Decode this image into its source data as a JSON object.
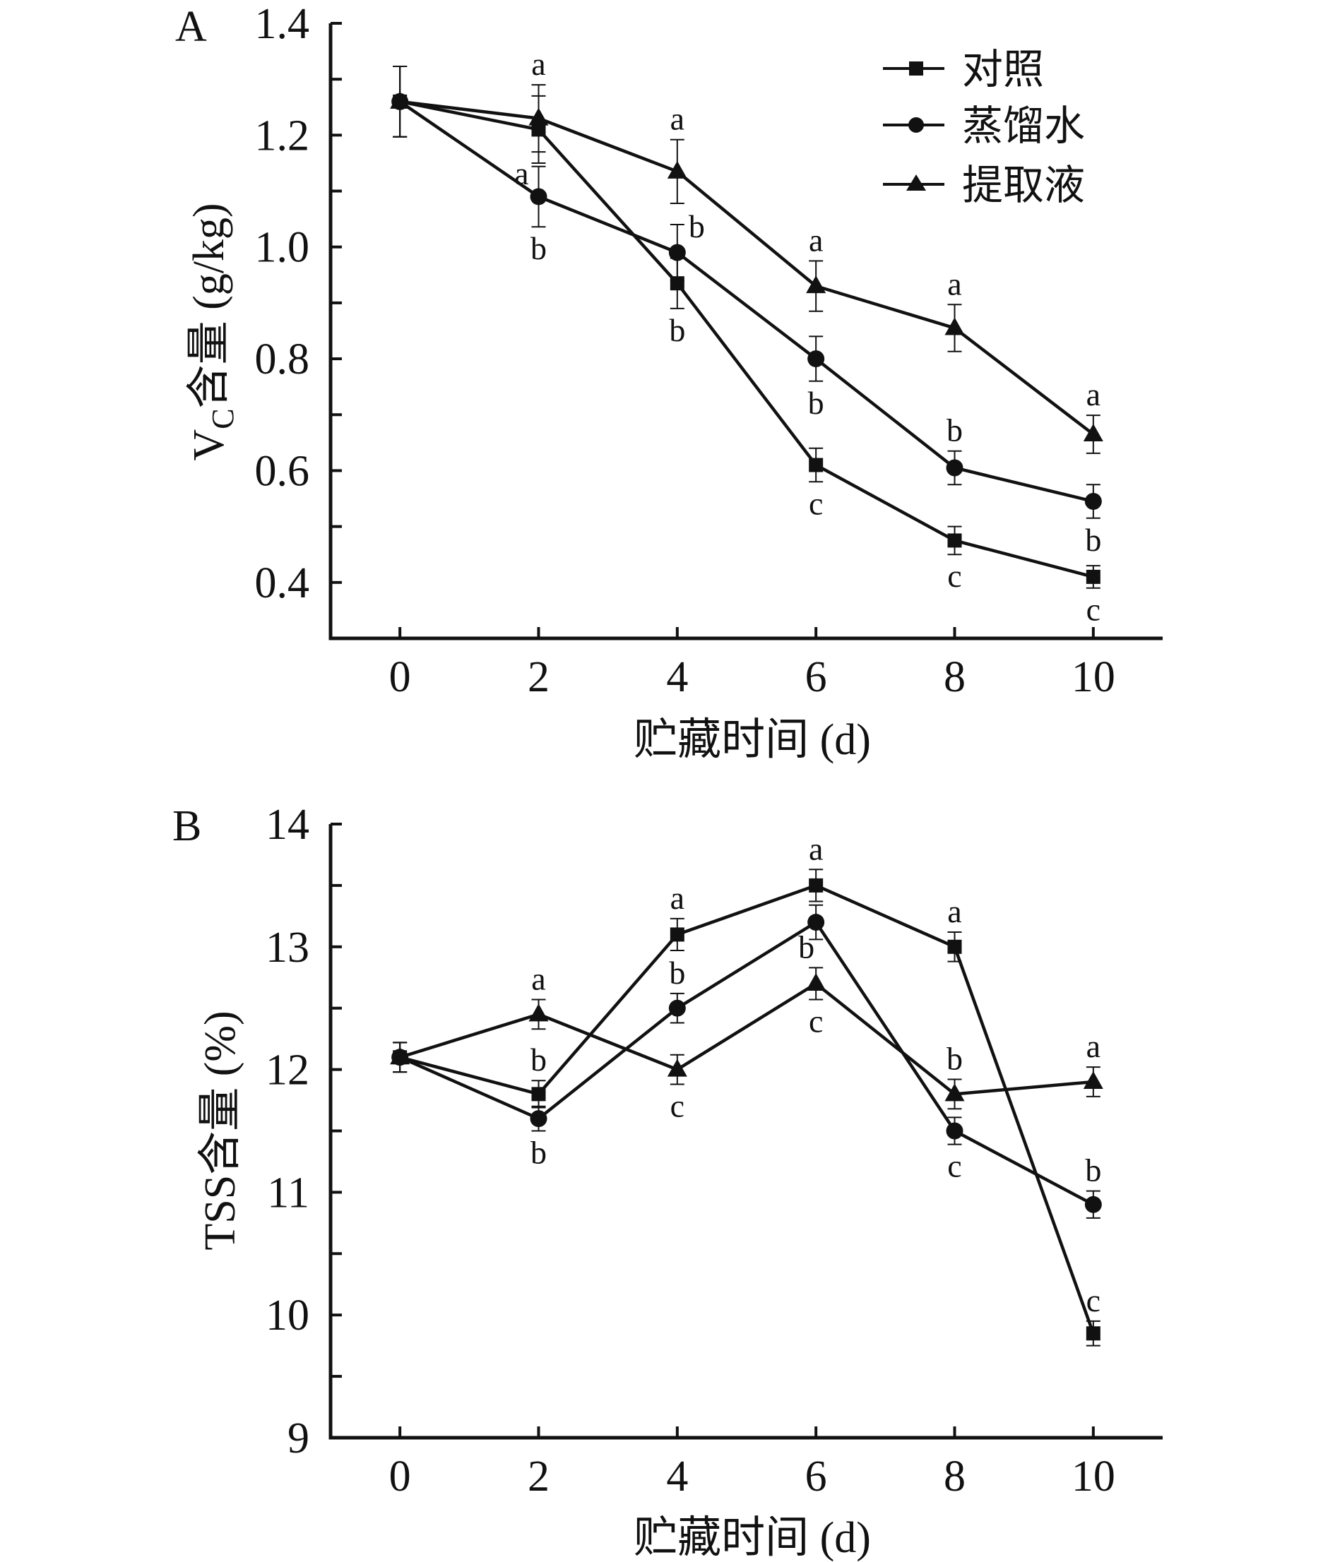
{
  "chart_data": [
    {
      "type": "line",
      "panel": "A",
      "title": "",
      "xlabel": "贮藏时间 (d)",
      "ylabel_main": "V",
      "ylabel_sub": "C",
      "ylabel_rest": "含量 (g/kg)",
      "x": [
        0,
        2,
        4,
        6,
        8,
        10
      ],
      "xticks": [
        "0",
        "2",
        "4",
        "6",
        "8",
        "10"
      ],
      "xlim": [
        -1,
        11
      ],
      "ylim": [
        0.3,
        1.4
      ],
      "yticks": [
        0.4,
        0.6,
        0.8,
        1.0,
        1.2,
        1.4
      ],
      "ytick_labels": [
        "0.4",
        "0.6",
        "0.8",
        "1.0",
        "1.2",
        "1.4"
      ],
      "yminor_step": 0.1,
      "grid": false,
      "legend_position": "top-right",
      "series": [
        {
          "name": "对照",
          "marker": "square",
          "values": [
            1.26,
            1.21,
            0.935,
            0.61,
            0.475,
            0.41
          ],
          "errors": [
            0.063,
            0.06,
            0.045,
            0.03,
            0.025,
            0.02
          ]
        },
        {
          "name": "蒸馏水",
          "marker": "circle",
          "values": [
            1.26,
            1.09,
            0.99,
            0.8,
            0.605,
            0.545
          ],
          "errors": [
            0.063,
            0.054,
            0.05,
            0.04,
            0.03,
            0.03
          ]
        },
        {
          "name": "提取液",
          "marker": "triangle",
          "values": [
            1.26,
            1.23,
            1.135,
            0.93,
            0.855,
            0.665
          ],
          "errors": [
            0.063,
            0.06,
            0.057,
            0.045,
            0.042,
            0.034
          ]
        }
      ],
      "annotations": [
        {
          "text": "a",
          "x": 2,
          "series": 2,
          "side": "above"
        },
        {
          "text": "a",
          "x": 2,
          "series": 0,
          "side": "left-below"
        },
        {
          "text": "b",
          "x": 2,
          "series": 1,
          "side": "below"
        },
        {
          "text": "a",
          "x": 4,
          "series": 2,
          "side": "above"
        },
        {
          "text": "b",
          "x": 4,
          "series": 1,
          "side": "right-above"
        },
        {
          "text": "b",
          "x": 4,
          "series": 0,
          "side": "below"
        },
        {
          "text": "a",
          "x": 6,
          "series": 2,
          "side": "above"
        },
        {
          "text": "b",
          "x": 6,
          "series": 1,
          "side": "below"
        },
        {
          "text": "c",
          "x": 6,
          "series": 0,
          "side": "below"
        },
        {
          "text": "a",
          "x": 8,
          "series": 2,
          "side": "above"
        },
        {
          "text": "b",
          "x": 8,
          "series": 1,
          "side": "above"
        },
        {
          "text": "c",
          "x": 8,
          "series": 0,
          "side": "below"
        },
        {
          "text": "a",
          "x": 10,
          "series": 2,
          "side": "above"
        },
        {
          "text": "b",
          "x": 10,
          "series": 1,
          "side": "below"
        },
        {
          "text": "c",
          "x": 10,
          "series": 0,
          "side": "below"
        }
      ]
    },
    {
      "type": "line",
      "panel": "B",
      "title": "",
      "xlabel": "贮藏时间 (d)",
      "ylabel": "TSS含量 (%)",
      "x": [
        0,
        2,
        4,
        6,
        8,
        10
      ],
      "xticks": [
        "0",
        "2",
        "4",
        "6",
        "8",
        "10"
      ],
      "xlim": [
        -1,
        11
      ],
      "ylim": [
        9,
        14
      ],
      "yticks": [
        9,
        10,
        11,
        12,
        13,
        14
      ],
      "ytick_labels": [
        "9",
        "10",
        "11",
        "12",
        "13",
        "14"
      ],
      "yminor_step": 0.5,
      "grid": false,
      "series": [
        {
          "name": "对照",
          "marker": "square",
          "values": [
            12.1,
            11.8,
            13.1,
            13.5,
            13.0,
            9.85
          ],
          "errors": [
            0.12,
            0.11,
            0.13,
            0.13,
            0.12,
            0.1
          ]
        },
        {
          "name": "蒸馏水",
          "marker": "circle",
          "values": [
            12.1,
            11.6,
            12.5,
            13.2,
            11.5,
            10.9
          ],
          "errors": [
            0.12,
            0.1,
            0.12,
            0.14,
            0.11,
            0.11
          ]
        },
        {
          "name": "提取液",
          "marker": "triangle",
          "values": [
            12.1,
            12.45,
            12.0,
            12.7,
            11.8,
            11.9
          ],
          "errors": [
            0.12,
            0.12,
            0.12,
            0.13,
            0.12,
            0.12
          ]
        }
      ],
      "annotations": [
        {
          "text": "a",
          "x": 2,
          "series": 2,
          "side": "above"
        },
        {
          "text": "b",
          "x": 2,
          "series": 0,
          "side": "above"
        },
        {
          "text": "b",
          "x": 2,
          "series": 1,
          "side": "below"
        },
        {
          "text": "a",
          "x": 4,
          "series": 0,
          "side": "above"
        },
        {
          "text": "b",
          "x": 4,
          "series": 1,
          "side": "above"
        },
        {
          "text": "c",
          "x": 4,
          "series": 2,
          "side": "below"
        },
        {
          "text": "a",
          "x": 6,
          "series": 0,
          "side": "above"
        },
        {
          "text": "b",
          "x": 6,
          "series": 2,
          "side": "left-above"
        },
        {
          "text": "c",
          "x": 6,
          "series": 2,
          "side": "below"
        },
        {
          "text": "a",
          "x": 8,
          "series": 0,
          "side": "above"
        },
        {
          "text": "b",
          "x": 8,
          "series": 2,
          "side": "above"
        },
        {
          "text": "c",
          "x": 8,
          "series": 1,
          "side": "below"
        },
        {
          "text": "a",
          "x": 10,
          "series": 2,
          "side": "above"
        },
        {
          "text": "b",
          "x": 10,
          "series": 1,
          "side": "above"
        },
        {
          "text": "c",
          "x": 10,
          "series": 0,
          "side": "above"
        }
      ]
    }
  ],
  "legend": {
    "items": [
      {
        "label": "对照",
        "marker": "square"
      },
      {
        "label": "蒸馏水",
        "marker": "circle"
      },
      {
        "label": "提取液",
        "marker": "triangle"
      }
    ]
  },
  "colors": {
    "ink": "#111111",
    "background": "#ffffff"
  }
}
